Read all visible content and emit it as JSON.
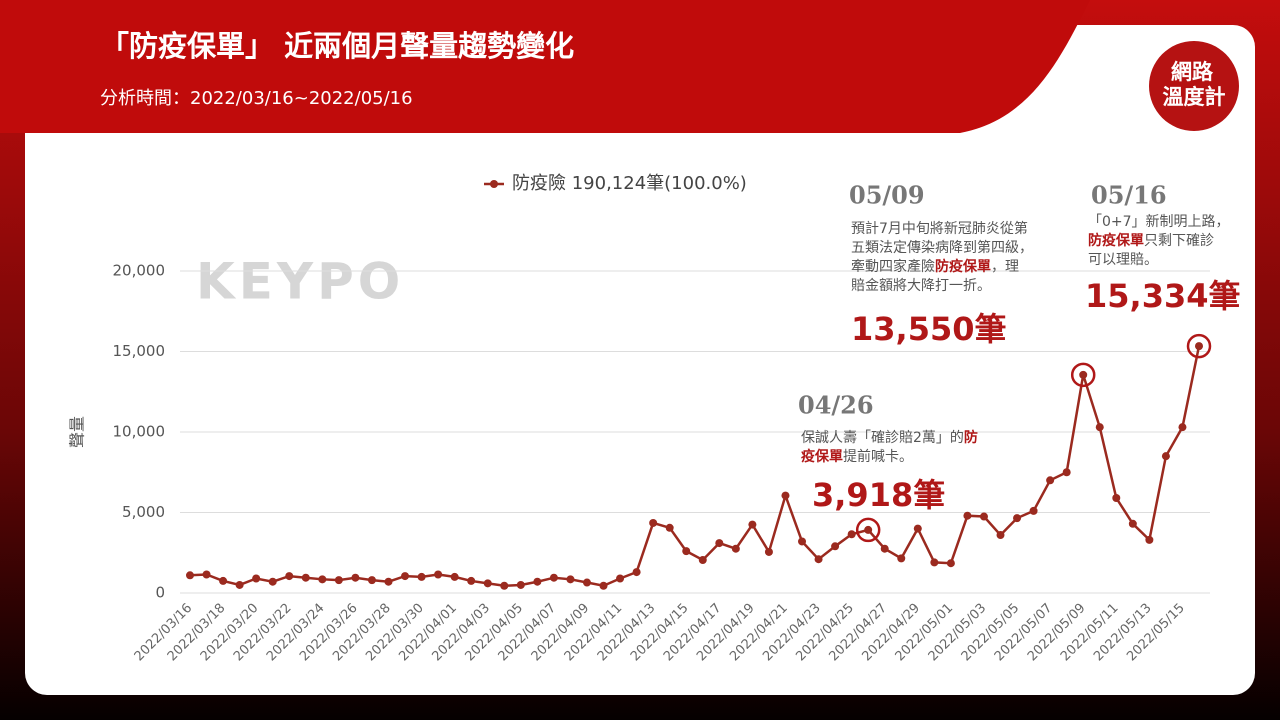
{
  "chart_data": {
    "type": "line",
    "title": "「防疫保單」 近兩個月聲量趨勢變化",
    "subtitle": "分析時間：2022/03/16~2022/05/16",
    "y_label": "聲量",
    "watermark": "KEYPO",
    "logo": [
      "網路",
      "溫度計"
    ],
    "categories": [
      "2022/03/16",
      null,
      "2022/03/18",
      null,
      "2022/03/20",
      null,
      "2022/03/22",
      null,
      "2022/03/24",
      null,
      "2022/03/26",
      null,
      "2022/03/28",
      null,
      "2022/03/30",
      null,
      "2022/04/01",
      null,
      "2022/04/03",
      null,
      "2022/04/05",
      null,
      "2022/04/07",
      null,
      "2022/04/09",
      null,
      "2022/04/11",
      null,
      "2022/04/13",
      null,
      "2022/04/15",
      null,
      "2022/04/17",
      null,
      "2022/04/19",
      null,
      "2022/04/21",
      null,
      "2022/04/23",
      null,
      "2022/04/25",
      null,
      "2022/04/27",
      null,
      "2022/04/29",
      null,
      "2022/05/01",
      null,
      "2022/05/03",
      null,
      "2022/05/05",
      null,
      "2022/05/07",
      null,
      "2022/05/09",
      null,
      "2022/05/11",
      null,
      "2022/05/13",
      null,
      "2022/05/15",
      null
    ],
    "series": [
      {
        "name": "防疫險 190,124筆(100.0%)",
        "color": "#9b2a1f",
        "values": [
          1100,
          1150,
          750,
          500,
          900,
          700,
          1050,
          950,
          850,
          800,
          950,
          800,
          700,
          1050,
          1000,
          1150,
          1000,
          750,
          600,
          450,
          500,
          700,
          950,
          850,
          650,
          450,
          900,
          1300,
          4350,
          4050,
          2600,
          2050,
          3100,
          2750,
          4250,
          2550,
          6050,
          3200,
          2100,
          2900,
          3650,
          3918,
          2750,
          2150,
          4000,
          1900,
          1850,
          4800,
          4750,
          3600,
          4650,
          5100,
          7000,
          7500,
          13550,
          10300,
          5900,
          4300,
          3300,
          8500,
          10300,
          15334
        ],
        "value_labels": [
          null,
          null,
          null,
          null,
          null,
          null,
          null,
          null,
          null,
          null,
          null,
          null,
          null,
          null,
          null,
          null,
          null,
          null,
          null,
          null,
          null,
          null,
          null,
          null,
          null,
          null,
          null,
          null,
          null,
          null,
          null,
          null,
          null,
          null,
          null,
          null,
          null,
          null,
          null,
          null,
          null,
          "3,918筆",
          null,
          null,
          null,
          null,
          null,
          null,
          null,
          null,
          null,
          null,
          null,
          null,
          "13,550筆",
          null,
          null,
          null,
          null,
          null,
          null,
          "15,334筆"
        ]
      }
    ],
    "ylim": [
      0,
      20000
    ],
    "yticks": [
      0,
      {
        "value": 5000,
        "label": "5,000"
      },
      {
        "value": 10000,
        "label": "10,000"
      },
      {
        "value": 15000,
        "label": "15,000"
      },
      {
        "value": 20000,
        "label": "20,000"
      }
    ],
    "grid": true,
    "annotations": [
      {
        "date": "04/26",
        "lines": [
          [
            "保誠人壽「確診賠2萬」的",
            "防"
          ],
          [
            "",
            "疫保單",
            "提前喊卡。"
          ]
        ]
      },
      {
        "date": "05/09",
        "lines": [
          [
            "預計7月中旬將新冠肺炎從第"
          ],
          [
            "五類法定傳染病降到第四級，"
          ],
          [
            "牽動四家產險",
            "防疫保單",
            "，理"
          ],
          [
            "賠金額將大降打一折。"
          ]
        ]
      },
      {
        "date": "05/16",
        "lines": [
          [
            "「0+7」新制明上路，"
          ],
          [
            "",
            "防疫保單",
            "只剩下確診"
          ],
          [
            "可以理賠。"
          ]
        ]
      }
    ]
  }
}
